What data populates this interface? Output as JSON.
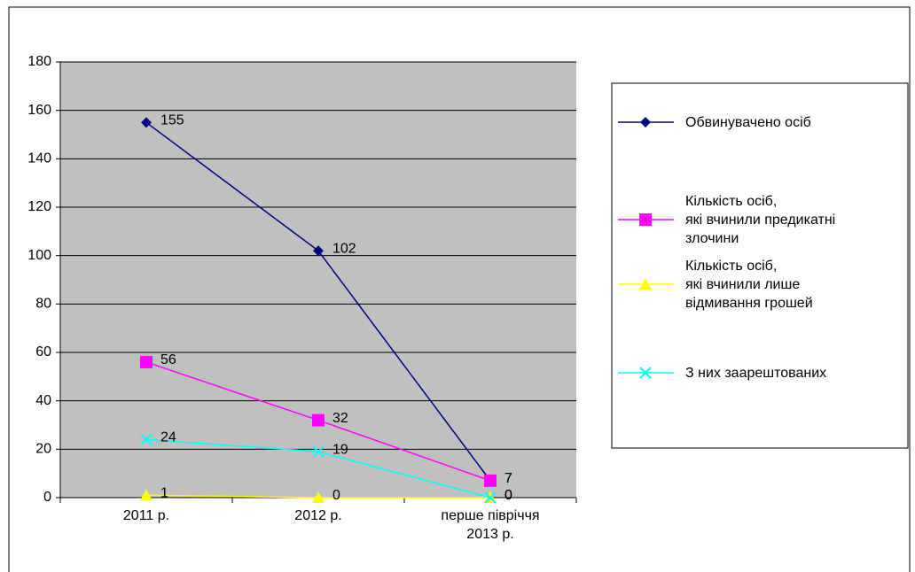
{
  "chart_data": {
    "type": "line",
    "categories": [
      "2011 р.",
      "2012 р.",
      "перше півріччя\n2013 р."
    ],
    "series": [
      {
        "name": "Обвинувачено осіб",
        "color": "#000080",
        "marker": "diamond",
        "values": [
          155,
          102,
          7
        ]
      },
      {
        "name": "Кількість осіб,\nякі вчинили предикатні\nзлочини",
        "color": "#ff00ff",
        "marker": "square",
        "values": [
          56,
          32,
          7
        ]
      },
      {
        "name": "Кількість осіб,\nякі вчинили лише\nвідмивання грошей",
        "color": "#ffff00",
        "marker": "triangle",
        "values": [
          1,
          0,
          0
        ]
      },
      {
        "name": "З них заарештованих",
        "color": "#00ffff",
        "marker": "x",
        "values": [
          24,
          19,
          0
        ]
      }
    ],
    "ylim": [
      0,
      180
    ],
    "yticks": [
      0,
      20,
      40,
      60,
      80,
      100,
      120,
      140,
      160,
      180
    ],
    "grid": true,
    "plot_background": "#c0c0c0",
    "legend": "right"
  }
}
